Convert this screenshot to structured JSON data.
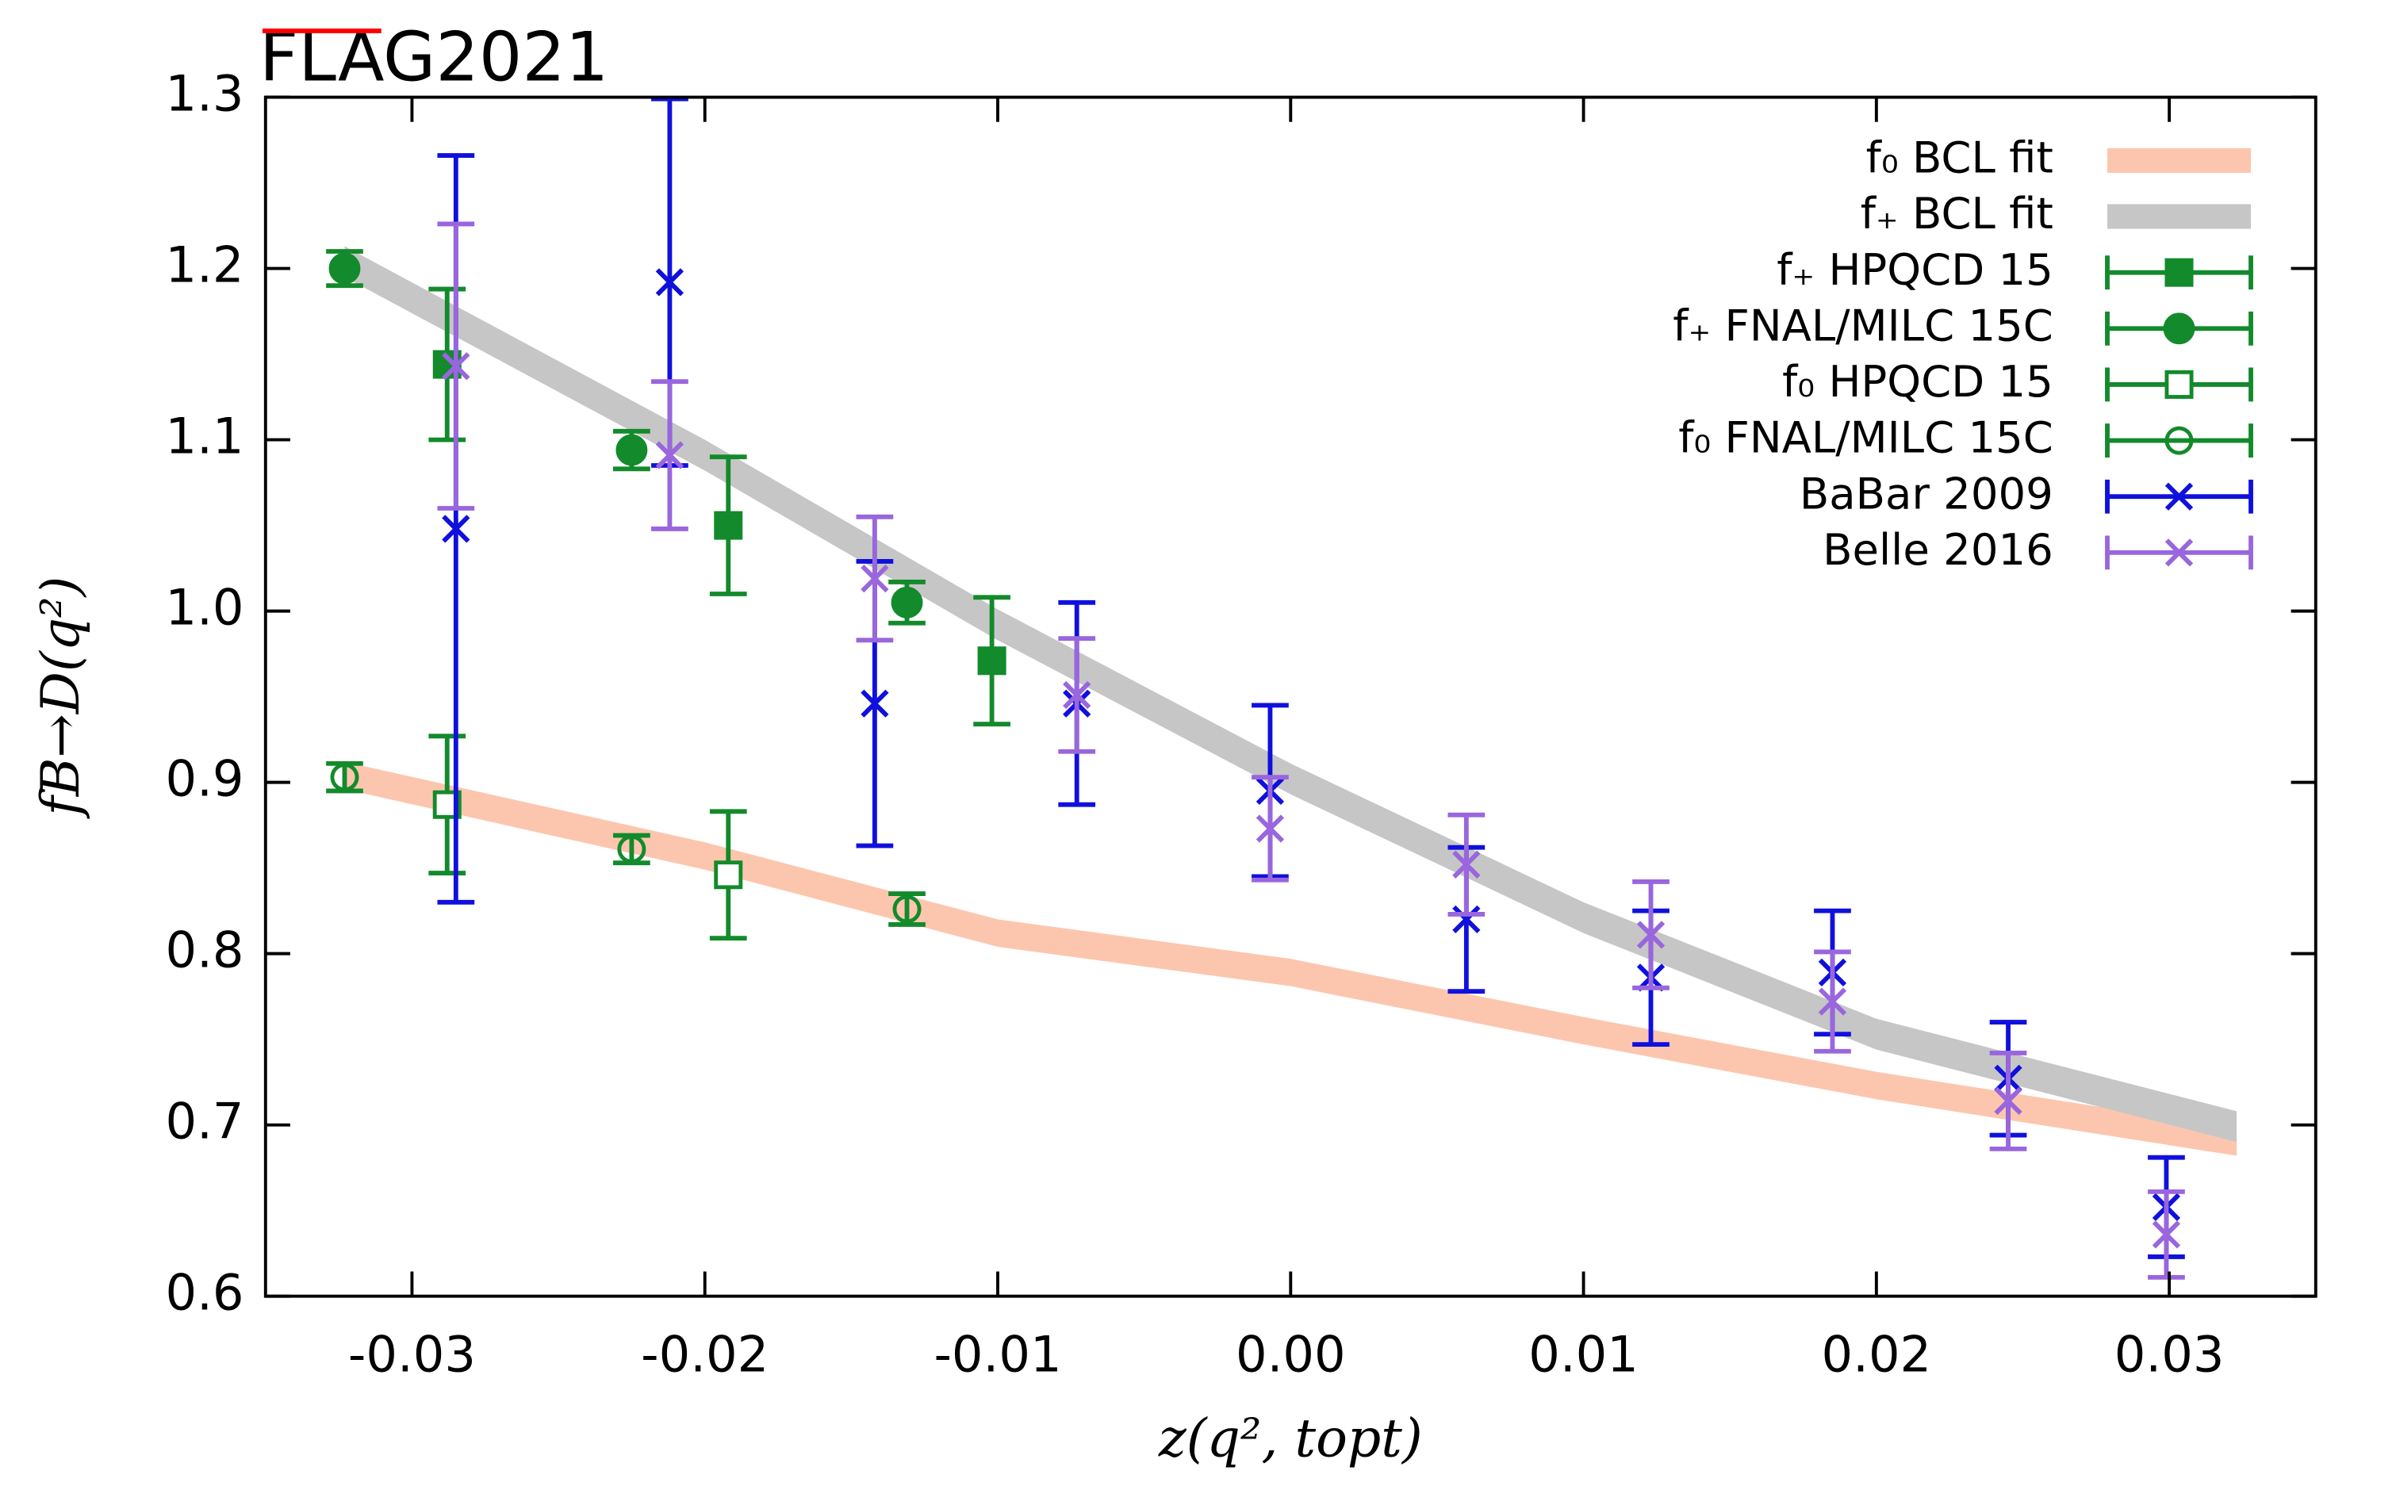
{
  "chart_data": {
    "type": "scatter",
    "title": "FLAG2021",
    "title_color": "#ff0000",
    "x_label": "z(q², topt)",
    "y_label": "fB→D(q²)",
    "xlim": [
      -0.035,
      0.035
    ],
    "ylim": [
      0.6,
      1.3
    ],
    "xticks": [
      -0.03,
      -0.02,
      -0.01,
      {
        "value": 0,
        "label": "0.00"
      },
      0.01,
      0.02,
      0.03
    ],
    "yticks": [
      0.6,
      0.7,
      0.8,
      0.9,
      {
        "value": 1,
        "label": "1.0"
      },
      1.1,
      1.2,
      1.3
    ],
    "legend": "upper right",
    "bands": [
      {
        "name": "f₀ BCL fit",
        "color": "#fcc6ae",
        "x": [
          -0.0323,
          -0.02,
          -0.01,
          0,
          0.01,
          0.02,
          0.0323
        ],
        "values": [
          0.904,
          0.857,
          0.812,
          0.789,
          0.755,
          0.723,
          0.69
        ],
        "errors": [
          0.008,
          0.008,
          0.008,
          0.008,
          0.008,
          0.008,
          0.008
        ]
      },
      {
        "name": "f₊ BCL fit",
        "color": "#c6c6c6",
        "x": [
          -0.0323,
          -0.02,
          -0.01,
          0,
          0.01,
          0.02,
          0.0323
        ],
        "values": [
          1.204,
          1.091,
          0.992,
          0.902,
          0.821,
          0.753,
          0.699
        ],
        "errors": [
          0.009,
          0.009,
          0.009,
          0.009,
          0.009,
          0.009,
          0.009
        ]
      }
    ],
    "series": [
      {
        "name": "f₊ HPQCD 15",
        "color": "#138a2b",
        "marker": "filled-square",
        "x": [
          -0.0288,
          -0.0192,
          -0.0102
        ],
        "values": [
          1.144,
          1.05,
          0.971
        ],
        "errors": [
          0.044,
          0.04,
          0.037
        ]
      },
      {
        "name": "f₊ FNAL/MILC 15C",
        "color": "#138a2b",
        "marker": "filled-circle",
        "x": [
          -0.0323,
          -0.0225,
          -0.0131
        ],
        "values": [
          1.2,
          1.094,
          1.005
        ],
        "errors": [
          0.01,
          0.011,
          0.012
        ]
      },
      {
        "name": "f₀ HPQCD 15",
        "color": "#138a2b",
        "marker": "open-square",
        "x": [
          -0.0288,
          -0.0192
        ],
        "values": [
          0.887,
          0.846
        ],
        "errors": [
          0.04,
          0.037
        ]
      },
      {
        "name": "f₀ FNAL/MILC 15C",
        "color": "#138a2b",
        "marker": "open-circle",
        "x": [
          -0.0323,
          -0.0225,
          -0.0131
        ],
        "values": [
          0.903,
          0.861,
          0.826
        ],
        "errors": [
          0.008,
          0.008,
          0.009
        ]
      },
      {
        "name": "BaBar 2009",
        "color": "#1010dd",
        "marker": "cross",
        "x": [
          -0.0285,
          -0.0212,
          -0.0142,
          -0.0073,
          -0.0007,
          0.006,
          0.0123,
          0.0185,
          0.0245,
          0.0299
        ],
        "values": [
          1.048,
          1.192,
          0.946,
          0.946,
          0.895,
          0.82,
          0.786,
          0.789,
          0.727,
          0.652
        ],
        "errors": [
          0.218,
          0.107,
          0.083,
          0.059,
          0.05,
          0.042,
          0.039,
          0.036,
          0.033,
          0.029
        ]
      },
      {
        "name": "Belle 2016",
        "color": "#9966dd",
        "marker": "cross",
        "x": [
          -0.0285,
          -0.0212,
          -0.0142,
          -0.0073,
          -0.0007,
          0.006,
          0.0123,
          0.0185,
          0.0245,
          0.0299
        ],
        "values": [
          1.143,
          1.091,
          1.019,
          0.951,
          0.873,
          0.852,
          0.811,
          0.772,
          0.714,
          0.636
        ],
        "errors": [
          0.083,
          0.043,
          0.036,
          0.033,
          0.03,
          0.029,
          0.031,
          0.029,
          0.028,
          0.025
        ]
      }
    ]
  }
}
